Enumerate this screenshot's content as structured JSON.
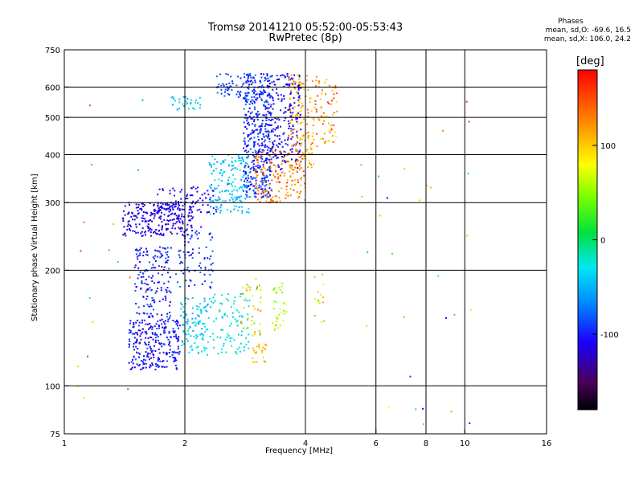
{
  "title_line1": "Tromsø 20141210 05:52:00-05:53:43",
  "title_line2": "RwPretec (8p)",
  "stats": {
    "heading": "Phases",
    "line_o": "mean, sd,O: -69.6, 16.5",
    "line_x": "mean, sd,X: 106.0, 24.2"
  },
  "colorbar": {
    "title": "[deg]",
    "ticks": [
      {
        "value": 100,
        "label": "100"
      },
      {
        "value": 0,
        "label": "0"
      },
      {
        "value": -100,
        "label": "-100"
      }
    ],
    "range": [
      -180,
      180
    ]
  },
  "chart_data": {
    "type": "scatter",
    "xlabel": "Frequency [MHz]",
    "ylabel": "Stationary phase Virtual Height [km]",
    "xscale": "log",
    "yscale": "log",
    "xlim": [
      1,
      16
    ],
    "ylim": [
      75,
      750
    ],
    "x_ticks": [
      {
        "value": 1,
        "label": "1"
      },
      {
        "value": 2,
        "label": "2"
      },
      {
        "value": 4,
        "label": "4"
      },
      {
        "value": 6,
        "label": "6"
      },
      {
        "value": 8,
        "label": "8"
      },
      {
        "value": 10,
        "label": "10"
      },
      {
        "value": 16,
        "label": "16"
      }
    ],
    "y_ticks": [
      {
        "value": 75,
        "label": "75"
      },
      {
        "value": 100,
        "label": "100"
      },
      {
        "value": 200,
        "label": "200"
      },
      {
        "value": 300,
        "label": "300"
      },
      {
        "value": 400,
        "label": "400"
      },
      {
        "value": 500,
        "label": "500"
      },
      {
        "value": 600,
        "label": "600"
      },
      {
        "value": 750,
        "label": "750"
      }
    ],
    "x_grid": [
      2,
      4,
      6,
      8,
      10
    ],
    "y_grid": [
      100,
      200,
      300,
      400,
      500,
      600
    ],
    "grid": true,
    "color_value": "phase [deg]",
    "clusters": [
      {
        "x": [
          1.45,
          1.95
        ],
        "y": [
          110,
          150
        ],
        "phase": [
          -125,
          -85
        ],
        "n": 260
      },
      {
        "x": [
          1.5,
          1.85
        ],
        "y": [
          150,
          230
        ],
        "phase": [
          -120,
          -80
        ],
        "n": 160
      },
      {
        "x": [
          1.4,
          2.1
        ],
        "y": [
          245,
          300
        ],
        "phase": [
          -130,
          -100
        ],
        "n": 240
      },
      {
        "x": [
          1.7,
          2.4
        ],
        "y": [
          280,
          330
        ],
        "phase": [
          -125,
          -95
        ],
        "n": 90
      },
      {
        "x": [
          1.9,
          2.35
        ],
        "y": [
          180,
          260
        ],
        "phase": [
          -115,
          -70
        ],
        "n": 80
      },
      {
        "x": [
          1.95,
          2.3
        ],
        "y": [
          120,
          170
        ],
        "phase": [
          -60,
          -20
        ],
        "n": 110
      },
      {
        "x": [
          2.3,
          2.9
        ],
        "y": [
          120,
          175
        ],
        "phase": [
          -45,
          -10
        ],
        "n": 90
      },
      {
        "x": [
          2.3,
          2.9
        ],
        "y": [
          280,
          400
        ],
        "phase": [
          -65,
          -25
        ],
        "n": 160
      },
      {
        "x": [
          2.8,
          3.3
        ],
        "y": [
          310,
          650
        ],
        "phase": [
          -120,
          -70
        ],
        "n": 420
      },
      {
        "x": [
          2.4,
          2.9
        ],
        "y": [
          560,
          650
        ],
        "phase": [
          -110,
          -70
        ],
        "n": 60
      },
      {
        "x": [
          1.85,
          2.2
        ],
        "y": [
          520,
          570
        ],
        "phase": [
          -60,
          -20
        ],
        "n": 30
      },
      {
        "x": [
          3.2,
          3.9
        ],
        "y": [
          360,
          650
        ],
        "phase": [
          -125,
          -90
        ],
        "n": 220
      },
      {
        "x": [
          3.0,
          4.0
        ],
        "y": [
          300,
          410
        ],
        "phase": [
          100,
          160
        ],
        "n": 150
      },
      {
        "x": [
          3.6,
          4.2
        ],
        "y": [
          360,
          650
        ],
        "phase": [
          90,
          140
        ],
        "n": 120
      },
      {
        "x": [
          4.2,
          4.8
        ],
        "y": [
          420,
          640
        ],
        "phase": [
          80,
          160
        ],
        "n": 70
      },
      {
        "x": [
          2.95,
          3.2
        ],
        "y": [
          115,
          130
        ],
        "phase": [
          95,
          125
        ],
        "n": 25
      },
      {
        "x": [
          2.75,
          3.1
        ],
        "y": [
          135,
          190
        ],
        "phase": [
          30,
          130
        ],
        "n": 40
      },
      {
        "x": [
          3.3,
          3.6
        ],
        "y": [
          140,
          185
        ],
        "phase": [
          30,
          110
        ],
        "n": 35
      },
      {
        "x": [
          4.2,
          4.5
        ],
        "y": [
          140,
          195
        ],
        "phase": [
          30,
          120
        ],
        "n": 15
      },
      {
        "x": [
          5.5,
          10.5
        ],
        "y": [
          78,
          640
        ],
        "phase": [
          -150,
          160
        ],
        "n": 30
      },
      {
        "x": [
          1.05,
          1.6
        ],
        "y": [
          85,
          650
        ],
        "phase": [
          -150,
          160
        ],
        "n": 18
      }
    ]
  }
}
